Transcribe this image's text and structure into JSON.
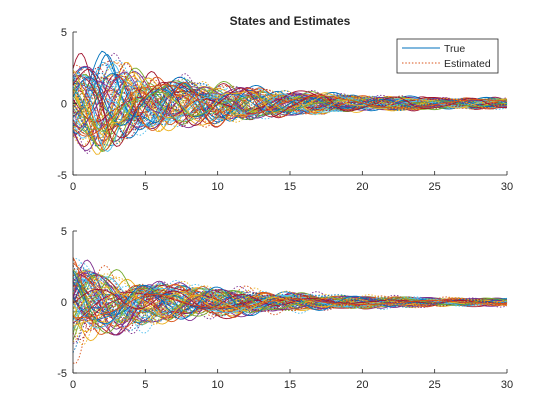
{
  "chart_data": [
    {
      "type": "line",
      "title": "States and Estimates",
      "xlabel": "",
      "ylabel": "",
      "xlim": [
        0,
        30
      ],
      "ylim": [
        -5,
        5
      ],
      "xticks": [
        0,
        5,
        10,
        15,
        20,
        25,
        30
      ],
      "yticks": [
        -5,
        0,
        5
      ],
      "grid": false,
      "legend": {
        "placement": "top-right",
        "entries": [
          {
            "label": "True",
            "color": "#0072BD",
            "style": "solid"
          },
          {
            "label": "Estimated",
            "color": "#D95319",
            "style": "dotted"
          }
        ]
      },
      "envelope": {
        "x": [
          0,
          2,
          5,
          10,
          15,
          20,
          25,
          30
        ],
        "y": [
          2.5,
          3.3,
          1.8,
          1.3,
          0.8,
          0.5,
          0.38,
          0.33
        ]
      },
      "series_count": 80
    },
    {
      "type": "line",
      "title": "",
      "xlabel": "",
      "ylabel": "",
      "xlim": [
        0,
        30
      ],
      "ylim": [
        -5,
        5
      ],
      "xticks": [
        0,
        5,
        10,
        15,
        20,
        25,
        30
      ],
      "yticks": [
        -5,
        0,
        5
      ],
      "grid": false,
      "envelope": {
        "x": [
          0,
          2,
          5,
          10,
          15,
          20,
          25,
          30
        ],
        "y": [
          3.2,
          2.2,
          1.6,
          1.0,
          0.6,
          0.42,
          0.3,
          0.25
        ]
      },
      "series_count": 80
    }
  ],
  "colors": [
    "#0072BD",
    "#D95319",
    "#EDB120",
    "#7E2F8E",
    "#77AC30",
    "#4DBEEE",
    "#A2142F"
  ]
}
